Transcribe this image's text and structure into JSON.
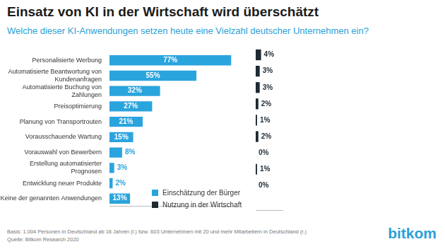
{
  "chart_data": {
    "type": "bar",
    "orientation": "horizontal",
    "title": "Einsatz von KI in der Wirtschaft wird überschätzt",
    "subtitle": "Welche dieser KI-Anwendungen setzen heute eine Vielzahl deutscher Unternehmen ein?",
    "categories": [
      "Personalisierte Werbung",
      "Automatisierte Beantwortung von Kundenanfragen",
      "Automatisierte Buchung von Zahlungen",
      "Preisoptimierung",
      "Planung von Transportrouten",
      "Vorausschauende Wartung",
      "Vorauswahl von Bewerbern",
      "Erstellung automatisierter Prognosen",
      "Entwicklung neuer Produkte",
      "Keine der genannten Anwendungen"
    ],
    "series": [
      {
        "name": "Einschätzung der Bürger",
        "color": "#2aa4dd",
        "values": [
          77,
          55,
          32,
          27,
          21,
          15,
          8,
          3,
          2,
          13
        ],
        "value_labels": [
          "77%",
          "55%",
          "32%",
          "27%",
          "21%",
          "15%",
          "8%",
          "3%",
          "2%",
          "13%"
        ]
      },
      {
        "name": "Nutzung in der Wirtschaft",
        "color": "#1e2a32",
        "axis": "x2",
        "values": [
          4,
          3,
          3,
          2,
          1,
          2,
          0,
          1,
          0,
          null
        ],
        "value_labels": [
          "4%",
          "3%",
          "3%",
          "2%",
          "1%",
          "2%",
          "0%",
          "1%",
          "0%",
          null
        ]
      }
    ],
    "xlim": [
      0,
      80
    ],
    "x2lim": [
      0,
      20
    ],
    "tick_labels": "y",
    "grid": false,
    "data_labels": true,
    "legend": "bottom",
    "annotations": [
      "Basis: 1.004 Personen in Deutschland ab 16 Jahren (l.) bzw. 603 Unternehmen mit 20 und mehr Mitarbeitern in Deutschland (r.)",
      "Quelle: Bitkom Research 2020",
      "bitkom"
    ]
  }
}
